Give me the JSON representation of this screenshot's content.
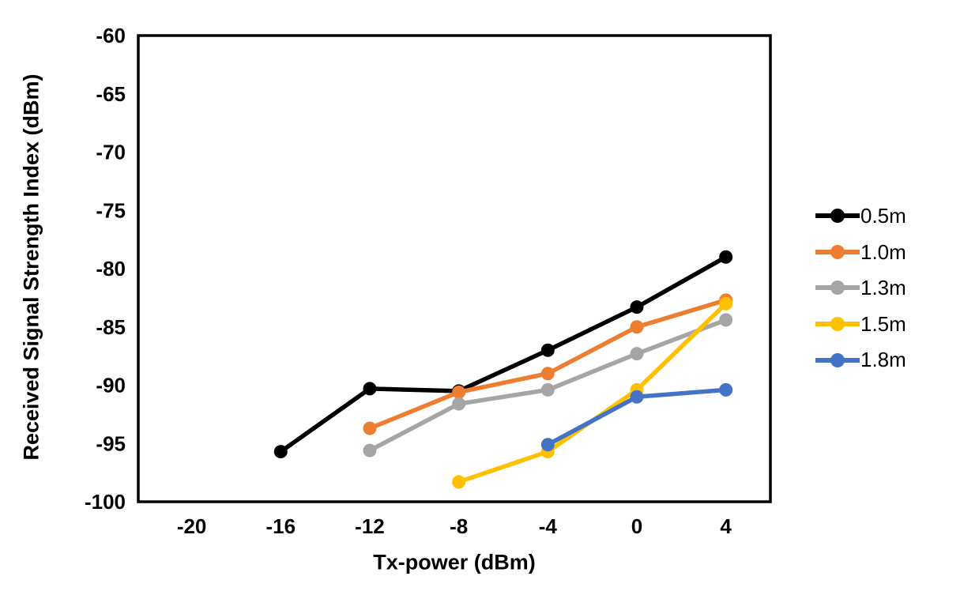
{
  "background": "#ffffff",
  "chart_data": {
    "type": "line",
    "title": "",
    "xlabel": "Tx-power (dBm)",
    "ylabel": "Received Signal Strength Index (dBm)",
    "xlim": [
      -22.4,
      6
    ],
    "ylim": [
      -100,
      -60
    ],
    "x_ticks": [
      -20,
      -16,
      -12,
      -8,
      -4,
      0,
      4
    ],
    "y_ticks": [
      -60,
      -65,
      -70,
      -75,
      -80,
      -85,
      -90,
      -95,
      -100
    ],
    "grid": false,
    "legend_position": "right",
    "axis_color": "#000000",
    "series": [
      {
        "name": "0.5m",
        "color": "#000000",
        "points": [
          [
            -16,
            -95.7
          ],
          [
            -12,
            -90.3
          ],
          [
            -8,
            -90.5
          ],
          [
            -4,
            -87.0
          ],
          [
            0,
            -83.3
          ],
          [
            4,
            -79.0
          ]
        ]
      },
      {
        "name": "1.0m",
        "color": "#ED7D31",
        "points": [
          [
            -12,
            -93.7
          ],
          [
            -8,
            -90.6
          ],
          [
            -4,
            -89.0
          ],
          [
            0,
            -85.0
          ],
          [
            4,
            -82.7
          ]
        ]
      },
      {
        "name": "1.3m",
        "color": "#A5A5A5",
        "points": [
          [
            -12,
            -95.6
          ],
          [
            -8,
            -91.6
          ],
          [
            -4,
            -90.4
          ],
          [
            0,
            -87.3
          ],
          [
            4,
            -84.4
          ]
        ]
      },
      {
        "name": "1.5m",
        "color": "#FFC000",
        "points": [
          [
            -8,
            -98.3
          ],
          [
            -4,
            -95.7
          ],
          [
            0,
            -90.4
          ],
          [
            4,
            -83.0
          ]
        ]
      },
      {
        "name": "1.8m",
        "color": "#4472C4",
        "points": [
          [
            -4,
            -95.1
          ],
          [
            0,
            -91.0
          ],
          [
            4,
            -90.4
          ]
        ]
      }
    ]
  }
}
